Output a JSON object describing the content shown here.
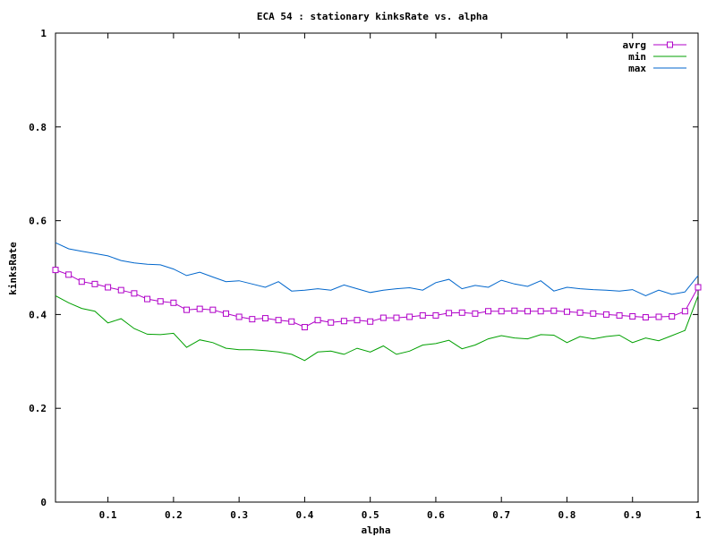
{
  "chart_data": {
    "type": "line",
    "title": "ECA 54 : stationary kinksRate vs. alpha",
    "xlabel": "alpha",
    "ylabel": "kinksRate",
    "xlim": [
      0.02,
      1.0
    ],
    "ylim": [
      0,
      1
    ],
    "xticks": [
      "0.1",
      "0.2",
      "0.3",
      "0.4",
      "0.5",
      "0.6",
      "0.7",
      "0.8",
      "0.9",
      "1"
    ],
    "yticks": [
      "0",
      "0.2",
      "0.4",
      "0.6",
      "0.8",
      "1"
    ],
    "legend_position": "top-right",
    "grid": false,
    "x": [
      0.02,
      0.04,
      0.06,
      0.08,
      0.1,
      0.12,
      0.14,
      0.16,
      0.18,
      0.2,
      0.22,
      0.24,
      0.26,
      0.28,
      0.3,
      0.32,
      0.34,
      0.36,
      0.38,
      0.4,
      0.42,
      0.44,
      0.46,
      0.48,
      0.5,
      0.52,
      0.54,
      0.56,
      0.58,
      0.6,
      0.62,
      0.64,
      0.66,
      0.68,
      0.7,
      0.72,
      0.74,
      0.76,
      0.78,
      0.8,
      0.82,
      0.84,
      0.86,
      0.88,
      0.9,
      0.92,
      0.94,
      0.96,
      0.98,
      1.0
    ],
    "series": [
      {
        "name": "avrg",
        "color": "#b000c8",
        "marker": "square",
        "values": [
          0.495,
          0.485,
          0.47,
          0.465,
          0.458,
          0.452,
          0.445,
          0.433,
          0.428,
          0.425,
          0.41,
          0.412,
          0.41,
          0.402,
          0.395,
          0.39,
          0.392,
          0.388,
          0.385,
          0.373,
          0.388,
          0.383,
          0.386,
          0.388,
          0.385,
          0.393,
          0.393,
          0.395,
          0.398,
          0.398,
          0.403,
          0.404,
          0.402,
          0.407,
          0.407,
          0.408,
          0.407,
          0.407,
          0.408,
          0.406,
          0.404,
          0.402,
          0.4,
          0.398,
          0.396,
          0.394,
          0.395,
          0.396,
          0.407,
          0.458
        ]
      },
      {
        "name": "min",
        "color": "#00a000",
        "marker": "none",
        "values": [
          0.44,
          0.425,
          0.413,
          0.407,
          0.382,
          0.391,
          0.37,
          0.358,
          0.357,
          0.36,
          0.33,
          0.346,
          0.34,
          0.328,
          0.325,
          0.325,
          0.323,
          0.32,
          0.315,
          0.302,
          0.32,
          0.322,
          0.315,
          0.328,
          0.32,
          0.333,
          0.315,
          0.322,
          0.335,
          0.338,
          0.345,
          0.327,
          0.335,
          0.348,
          0.355,
          0.35,
          0.348,
          0.357,
          0.356,
          0.34,
          0.353,
          0.348,
          0.353,
          0.356,
          0.34,
          0.35,
          0.344,
          0.355,
          0.366,
          0.44
        ]
      },
      {
        "name": "max",
        "color": "#0066cc",
        "marker": "none",
        "values": [
          0.553,
          0.54,
          0.535,
          0.53,
          0.525,
          0.515,
          0.51,
          0.507,
          0.506,
          0.497,
          0.483,
          0.49,
          0.48,
          0.47,
          0.472,
          0.465,
          0.458,
          0.47,
          0.45,
          0.452,
          0.455,
          0.452,
          0.463,
          0.455,
          0.447,
          0.452,
          0.455,
          0.457,
          0.452,
          0.468,
          0.475,
          0.455,
          0.462,
          0.458,
          0.473,
          0.465,
          0.46,
          0.472,
          0.45,
          0.458,
          0.455,
          0.453,
          0.452,
          0.45,
          0.453,
          0.44,
          0.452,
          0.443,
          0.448,
          0.483
        ]
      }
    ]
  }
}
